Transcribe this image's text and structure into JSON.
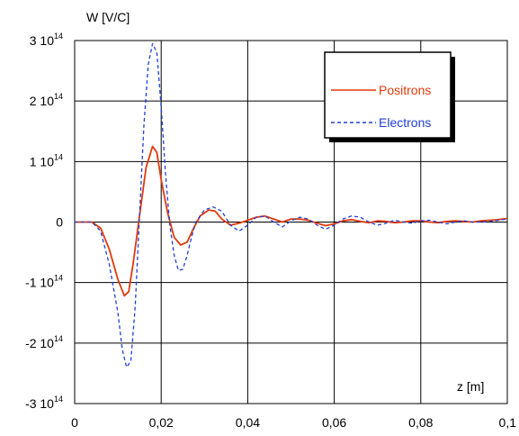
{
  "chart_data": {
    "type": "line",
    "ylabel": "W [V/C]",
    "xlabel": "z [m]",
    "xlim": [
      0,
      0.1
    ],
    "ylim": [
      -300000000000000.0,
      300000000000000.0
    ],
    "grid": true,
    "legend_position": "top-right",
    "x_ticks": [
      {
        "value": 0,
        "label": "0"
      },
      {
        "value": 0.02,
        "label": "0,02"
      },
      {
        "value": 0.04,
        "label": "0,04"
      },
      {
        "value": 0.06,
        "label": "0,06"
      },
      {
        "value": 0.08,
        "label": "0,08"
      },
      {
        "value": 0.1,
        "label": "0,1"
      }
    ],
    "y_ticks": [
      {
        "value": 300000000000000.0,
        "mant": "3 10",
        "exp": "14"
      },
      {
        "value": 200000000000000.0,
        "mant": "2 10",
        "exp": "14"
      },
      {
        "value": 100000000000000.0,
        "mant": "1 10",
        "exp": "14"
      },
      {
        "value": 0,
        "mant": "0",
        "exp": ""
      },
      {
        "value": -100000000000000.0,
        "mant": "-1 10",
        "exp": "14"
      },
      {
        "value": -200000000000000.0,
        "mant": "-2 10",
        "exp": "14"
      },
      {
        "value": -300000000000000.0,
        "mant": "-3 10",
        "exp": "14"
      }
    ],
    "series": [
      {
        "name": "Positrons",
        "color": "#e03a0c",
        "style": "solid",
        "x": [
          0,
          0.004,
          0.006,
          0.008,
          0.01,
          0.0115,
          0.0125,
          0.0135,
          0.015,
          0.0165,
          0.018,
          0.019,
          0.02,
          0.0215,
          0.023,
          0.0245,
          0.026,
          0.0275,
          0.029,
          0.031,
          0.0325,
          0.034,
          0.036,
          0.038,
          0.04,
          0.042,
          0.044,
          0.046,
          0.048,
          0.05,
          0.052,
          0.054,
          0.056,
          0.058,
          0.06,
          0.062,
          0.064,
          0.066,
          0.068,
          0.07,
          0.072,
          0.074,
          0.076,
          0.078,
          0.08,
          0.082,
          0.084,
          0.086,
          0.088,
          0.09,
          0.092,
          0.094,
          0.096,
          0.098,
          0.1
        ],
        "values": [
          0,
          0,
          -10000000000000.0,
          -45000000000000.0,
          -95000000000000.0,
          -122000000000000.0,
          -115000000000000.0,
          -70000000000000.0,
          10000000000000.0,
          90000000000000.0,
          125000000000000.0,
          115000000000000.0,
          70000000000000.0,
          15000000000000.0,
          -25000000000000.0,
          -38000000000000.0,
          -33000000000000.0,
          -10000000000000.0,
          10000000000000.0,
          20000000000000.0,
          18000000000000.0,
          5000000000000.0,
          -5000000000000.0,
          -2000000000000.0,
          3000000000000.0,
          8000000000000.0,
          10000000000000.0,
          5000000000000.0,
          0.0,
          5000000000000.0,
          5000000000000.0,
          3000000000000.0,
          -2000000000000.0,
          -6000000000000.0,
          -3000000000000.0,
          2000000000000.0,
          4000000000000.0,
          1000000000000.0,
          -1000000000000.0,
          2000000000000.0,
          1000000000000.0,
          -1000000000000.0,
          0.0,
          2000000000000.0,
          2000000000000.0,
          0.0,
          -1000000000000.0,
          1000000000000.0,
          2000000000000.0,
          1000000000000.0,
          0.0,
          2000000000000.0,
          3000000000000.0,
          4000000000000.0,
          6000000000000.0
        ]
      },
      {
        "name": "Electrons",
        "color": "#1f3fd6",
        "style": "dashed",
        "x": [
          0,
          0.004,
          0.006,
          0.008,
          0.01,
          0.011,
          0.012,
          0.013,
          0.014,
          0.015,
          0.016,
          0.017,
          0.018,
          0.019,
          0.02,
          0.021,
          0.022,
          0.023,
          0.024,
          0.025,
          0.026,
          0.027,
          0.028,
          0.03,
          0.032,
          0.034,
          0.036,
          0.038,
          0.04,
          0.042,
          0.044,
          0.046,
          0.048,
          0.05,
          0.052,
          0.054,
          0.056,
          0.058,
          0.06,
          0.062,
          0.064,
          0.066,
          0.068,
          0.07,
          0.072,
          0.074,
          0.076,
          0.078,
          0.08,
          0.082,
          0.084,
          0.086,
          0.088,
          0.09,
          0.092,
          0.094,
          0.096,
          0.098,
          0.1
        ],
        "values": [
          0,
          0,
          -15000000000000.0,
          -70000000000000.0,
          -150000000000000.0,
          -210000000000000.0,
          -240000000000000.0,
          -230000000000000.0,
          -140000000000000.0,
          10000000000000.0,
          160000000000000.0,
          260000000000000.0,
          295000000000000.0,
          280000000000000.0,
          190000000000000.0,
          80000000000000.0,
          -5000000000000.0,
          -55000000000000.0,
          -80000000000000.0,
          -78000000000000.0,
          -55000000000000.0,
          -25000000000000.0,
          0.0,
          20000000000000.0,
          25000000000000.0,
          18000000000000.0,
          -5000000000000.0,
          -15000000000000.0,
          -5000000000000.0,
          8000000000000.0,
          10000000000000.0,
          0.0,
          -8000000000000.0,
          2000000000000.0,
          8000000000000.0,
          5000000000000.0,
          -5000000000000.0,
          -12000000000000.0,
          -5000000000000.0,
          5000000000000.0,
          10000000000000.0,
          8000000000000.0,
          0.0,
          -5000000000000.0,
          -2000000000000.0,
          3000000000000.0,
          0.0,
          -2000000000000.0,
          2000000000000.0,
          3000000000000.0,
          0.0,
          -3000000000000.0,
          0.0,
          2000000000000.0,
          0.0,
          0.0,
          1000000000000.0,
          3000000000000.0,
          5000000000000.0
        ]
      }
    ]
  }
}
